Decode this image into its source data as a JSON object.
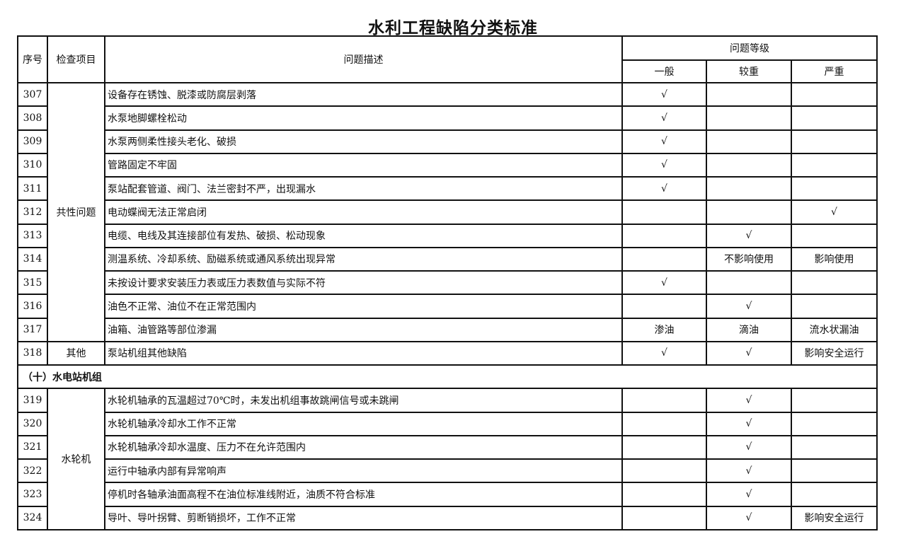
{
  "title": "水利工程缺陷分类标准",
  "headers": {
    "no": "序号",
    "item": "检查项目",
    "desc": "问题描述",
    "level": "问题等级",
    "general": "一般",
    "heavy": "较重",
    "severe": "严重"
  },
  "rows": [
    {
      "no": "307",
      "group": "共性问题",
      "span": 11,
      "desc": "设备存在锈蚀、脱漆或防腐层剥落",
      "general": "√",
      "heavy": "",
      "severe": ""
    },
    {
      "no": "308",
      "desc": "水泵地脚螺栓松动",
      "general": "√",
      "heavy": "",
      "severe": ""
    },
    {
      "no": "309",
      "desc": "水泵两侧柔性接头老化、破损",
      "general": "√",
      "heavy": "",
      "severe": ""
    },
    {
      "no": "310",
      "desc": "管路固定不牢固",
      "general": "√",
      "heavy": "",
      "severe": ""
    },
    {
      "no": "311",
      "desc": "泵站配套管道、阀门、法兰密封不严，出现漏水",
      "general": "√",
      "heavy": "",
      "severe": ""
    },
    {
      "no": "312",
      "desc": "电动蝶阀无法正常启闭",
      "general": "",
      "heavy": "",
      "severe": "√"
    },
    {
      "no": "313",
      "desc": "电缆、电线及其连接部位有发热、破损、松动现象",
      "general": "",
      "heavy": "√",
      "severe": ""
    },
    {
      "no": "314",
      "desc": "测温系统、冷却系统、励磁系统或通风系统出现异常",
      "general": "",
      "heavy": "不影响使用",
      "severe": "影响使用"
    },
    {
      "no": "315",
      "desc": "未按设计要求安装压力表或压力表数值与实际不符",
      "general": "√",
      "heavy": "",
      "severe": ""
    },
    {
      "no": "316",
      "desc": "油色不正常、油位不在正常范围内",
      "general": "",
      "heavy": "√",
      "severe": ""
    },
    {
      "no": "317",
      "desc": "油箱、油管路等部位渗漏",
      "general": "渗油",
      "heavy": "滴油",
      "severe": "流水状漏油"
    },
    {
      "no": "318",
      "group": "其他",
      "span": 1,
      "desc": "泵站机组其他缺陷",
      "general": "√",
      "heavy": "√",
      "severe": "影响安全运行"
    },
    {
      "section": "（十）水电站机组"
    },
    {
      "no": "319",
      "group": "水轮机",
      "span": 6,
      "desc": "水轮机轴承的瓦温超过70℃时，未发出机组事故跳闸信号或未跳闸",
      "general": "",
      "heavy": "√",
      "severe": ""
    },
    {
      "no": "320",
      "desc": "水轮机轴承冷却水工作不正常",
      "general": "",
      "heavy": "√",
      "severe": ""
    },
    {
      "no": "321",
      "desc": "水轮机轴承冷却水温度、压力不在允许范围内",
      "general": "",
      "heavy": "√",
      "severe": ""
    },
    {
      "no": "322",
      "desc": "运行中轴承内部有异常响声",
      "general": "",
      "heavy": "√",
      "severe": ""
    },
    {
      "no": "323",
      "desc": "停机时各轴承油面高程不在油位标准线附近，油质不符合标准",
      "general": "",
      "heavy": "√",
      "severe": ""
    },
    {
      "no": "324",
      "desc": "导叶、导叶拐臂、剪断销损坏，工作不正常",
      "general": "",
      "heavy": "√",
      "severe": "影响安全运行"
    }
  ]
}
